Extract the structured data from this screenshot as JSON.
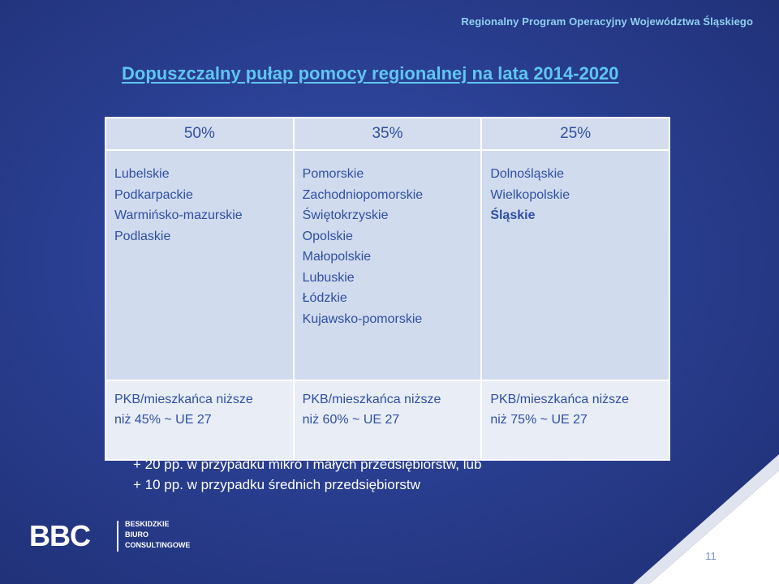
{
  "header": {
    "program_name": "Regionalny Program Operacyjny Województwa Śląskiego"
  },
  "title": "Dopuszczalny pułap pomocy regionalnej na lata 2014-2020",
  "table": {
    "columns": [
      {
        "header": "50%",
        "regions": [
          "Lubelskie",
          "Podkarpackie",
          "Warmińsko-mazurskie",
          "Podlaskie"
        ],
        "pkb_line1": "PKB/mieszkańca niższe",
        "pkb_line2": "niż 45% ~ UE 27"
      },
      {
        "header": "35%",
        "regions": [
          "Pomorskie",
          "Zachodniopomorskie",
          "Świętokrzyskie",
          "Opolskie",
          "Małopolskie",
          "Lubuskie",
          "Łódzkie",
          "Kujawsko-pomorskie"
        ],
        "pkb_line1": "PKB/mieszkańca niższe",
        "pkb_line2": "niż 60% ~ UE 27"
      },
      {
        "header": "25%",
        "regions": [
          "Dolnośląskie",
          "Wielkopolskie",
          "Śląskie"
        ],
        "highlighted_region": "Śląskie",
        "pkb_line1": "PKB/mieszkańca niższe",
        "pkb_line2": "niż 75% ~ UE 27"
      }
    ]
  },
  "notes": [
    "+ 20 pp. w przypadku mikro i małych przedsiębiorstw, lub",
    "+ 10 pp. w przypadku średnich przedsiębiorstw"
  ],
  "logo": {
    "mark": "BBC",
    "line1": "BESKIDZKIE",
    "line2": "BIURO",
    "line3": "CONSULTINGOWE"
  },
  "page_number": "11",
  "colors": {
    "background": "#2c3f8e",
    "title": "#5fc6f2",
    "header_text": "#8fd0f0",
    "table_header_bg": "#d4ddee",
    "table_body_bg": "#d1dbee",
    "table_footer_bg": "#e9edf6",
    "table_text": "#2f4fa3",
    "corner_white": "#ffffff"
  }
}
